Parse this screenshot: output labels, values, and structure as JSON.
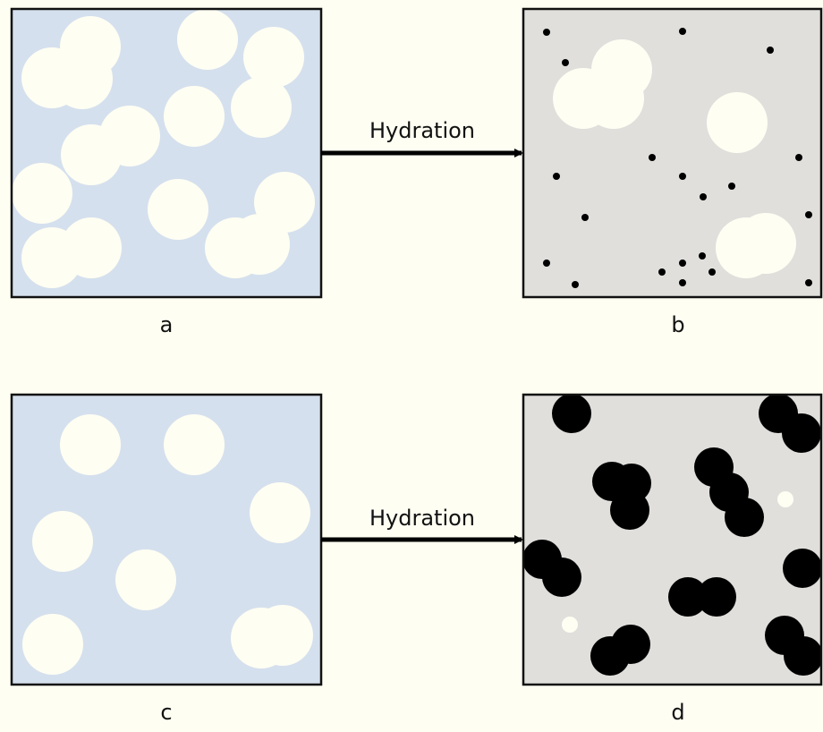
{
  "arrows": [
    {
      "label": "Hydration"
    },
    {
      "label": "Hydration"
    }
  ],
  "panels": [
    {
      "label": "a"
    },
    {
      "label": "b"
    },
    {
      "label": "c"
    },
    {
      "label": "d"
    }
  ]
}
